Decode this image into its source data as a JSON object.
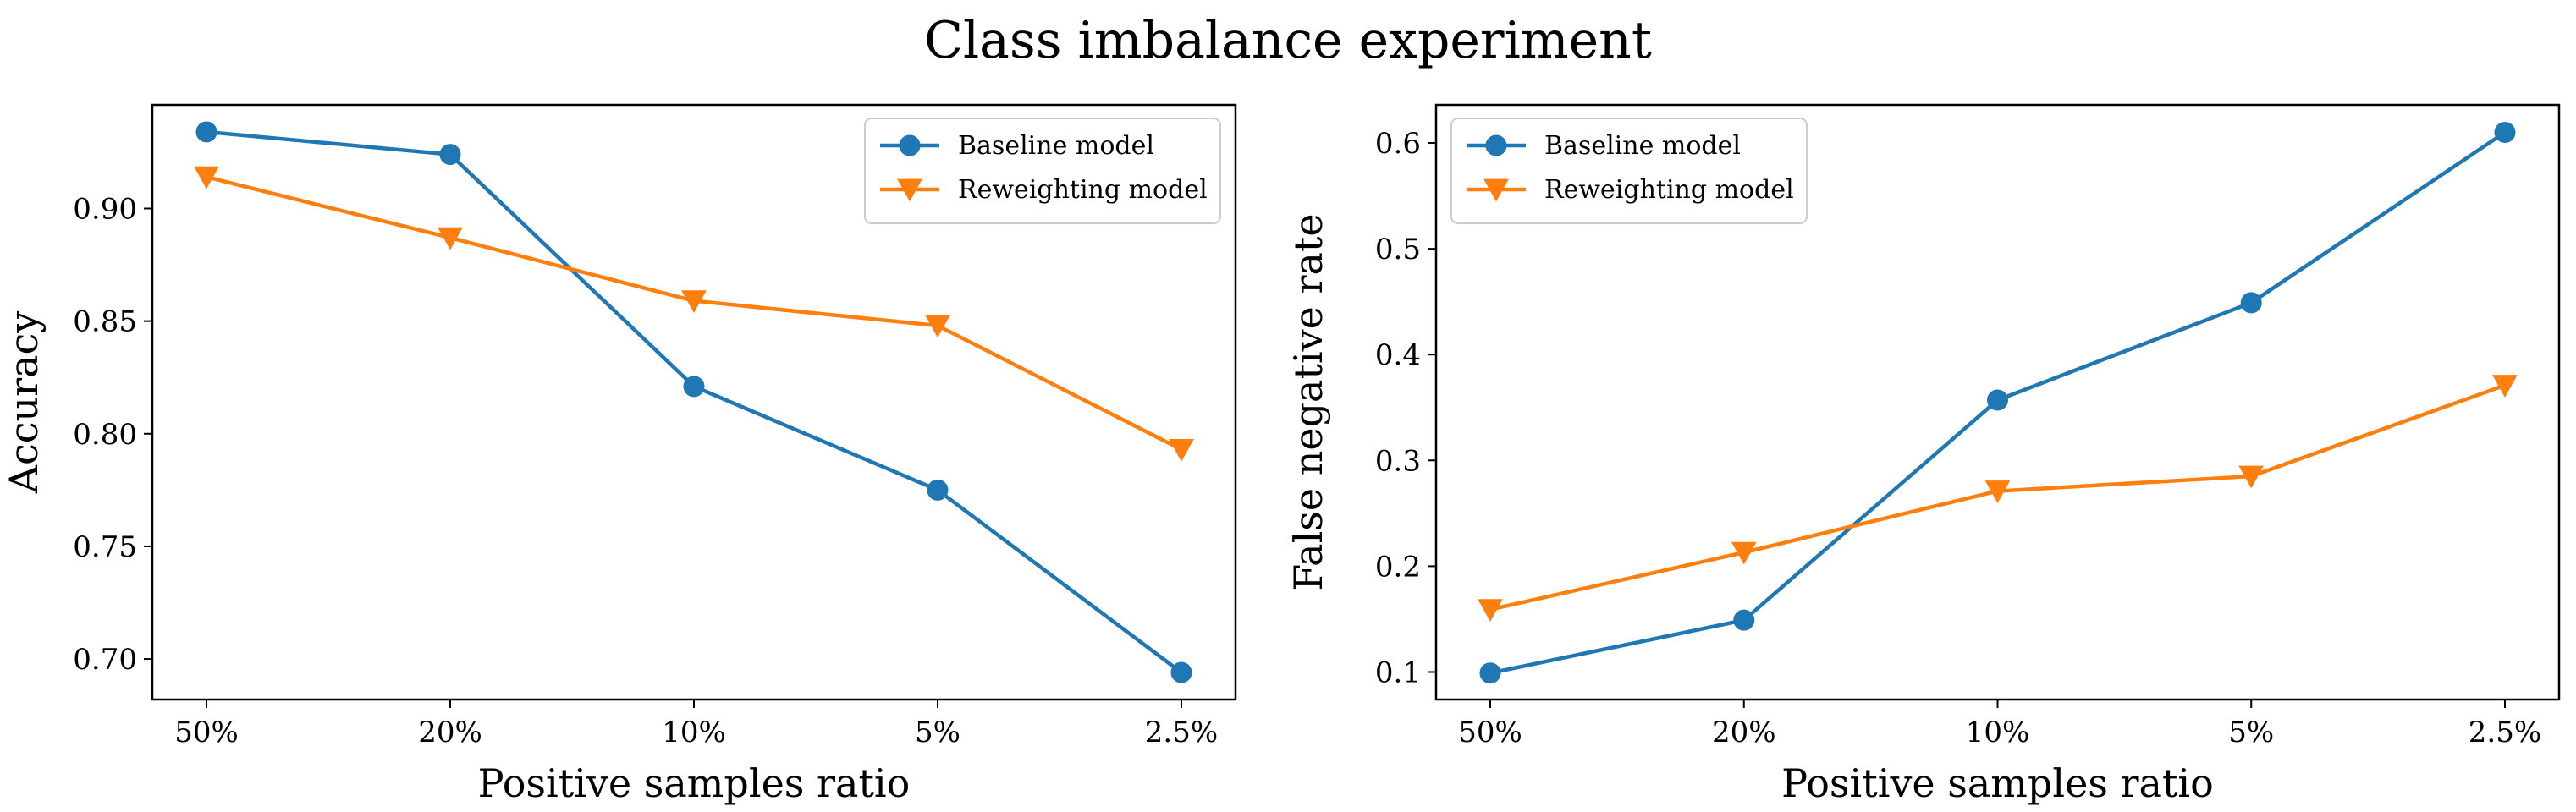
{
  "figure": {
    "suptitle": "Class imbalance experiment"
  },
  "chart_data": [
    {
      "type": "line",
      "title": "",
      "xlabel": "Positive samples ratio",
      "ylabel": "Accuracy",
      "categories": [
        "50%",
        "20%",
        "10%",
        "5%",
        "2.5%"
      ],
      "ylim": [
        0.682,
        0.946
      ],
      "yticks": [
        0.7,
        0.75,
        0.8,
        0.85,
        0.9
      ],
      "ytick_labels": [
        "0.70",
        "0.75",
        "0.80",
        "0.85",
        "0.90"
      ],
      "legend_position": "top-right",
      "grid": false,
      "series": [
        {
          "name": "Baseline model",
          "color": "#1f77b4",
          "marker": "circle",
          "values": [
            0.934,
            0.924,
            0.821,
            0.775,
            0.694
          ]
        },
        {
          "name": "Reweighting model",
          "color": "#ff7f0e",
          "marker": "triangle-down",
          "values": [
            0.914,
            0.887,
            0.859,
            0.848,
            0.793
          ]
        }
      ]
    },
    {
      "type": "line",
      "title": "",
      "xlabel": "Positive samples ratio",
      "ylabel": "False negative rate",
      "categories": [
        "50%",
        "20%",
        "10%",
        "5%",
        "2.5%"
      ],
      "ylim": [
        0.074,
        0.636
      ],
      "yticks": [
        0.1,
        0.2,
        0.3,
        0.4,
        0.5,
        0.6
      ],
      "ytick_labels": [
        "0.1",
        "0.2",
        "0.3",
        "0.4",
        "0.5",
        "0.6"
      ],
      "legend_position": "top-left",
      "grid": false,
      "series": [
        {
          "name": "Baseline model",
          "color": "#1f77b4",
          "marker": "circle",
          "values": [
            0.099,
            0.149,
            0.357,
            0.449,
            0.61
          ]
        },
        {
          "name": "Reweighting model",
          "color": "#ff7f0e",
          "marker": "triangle-down",
          "values": [
            0.159,
            0.213,
            0.271,
            0.285,
            0.371
          ]
        }
      ]
    }
  ]
}
